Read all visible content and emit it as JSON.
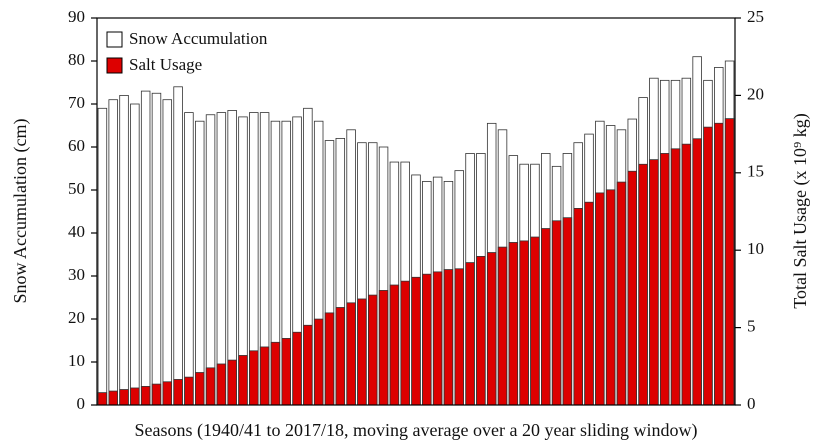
{
  "chart_data": {
    "type": "bar",
    "xlabel": "Seasons (1940/41 to 2017/18, moving average over a 20 year sliding window)",
    "ylabel": "Snow Accumulation (cm)",
    "y2label": "Total Salt Usage  (x 10⁹ kg)",
    "legend": "upper left",
    "categories": [
      null,
      null,
      null,
      null,
      null,
      null,
      null,
      null,
      null,
      null,
      null,
      null,
      null,
      null,
      null,
      null,
      null,
      null,
      null,
      null,
      null,
      null,
      null,
      null,
      null,
      null,
      null,
      null,
      null,
      null,
      null,
      null,
      null,
      null,
      null,
      null,
      null,
      null,
      null,
      null,
      null,
      null,
      null,
      null,
      null,
      null,
      null,
      null,
      null,
      null,
      null,
      null,
      null,
      null,
      null,
      null,
      null,
      null,
      null
    ],
    "ylim": [
      0,
      90
    ],
    "yticks": [
      0,
      10,
      20,
      30,
      40,
      50,
      60,
      70,
      80,
      90
    ],
    "y2lim": [
      0,
      25
    ],
    "y2ticks": [
      0,
      5,
      10,
      15,
      20,
      25
    ],
    "series": [
      {
        "name": "Snow Accumulation",
        "color": "#ffffff",
        "axis": "y",
        "values": [
          69,
          71,
          72,
          70,
          73,
          72.5,
          71,
          74,
          68,
          66,
          67.5,
          68,
          68.5,
          67,
          68,
          68,
          66,
          66,
          67,
          69,
          66,
          61.5,
          62,
          64,
          61,
          61,
          60,
          56.5,
          56.5,
          53.5,
          52,
          53,
          52,
          54.5,
          58.5,
          58.5,
          65.5,
          64,
          58,
          56,
          56,
          58.5,
          55.5,
          58.5,
          61,
          63,
          66,
          65,
          64,
          66.5,
          71.5,
          76,
          75.5,
          75.5,
          76,
          81,
          75.5,
          78.5,
          80
        ]
      },
      {
        "name": "Salt Usage",
        "color": "#dd0000",
        "axis": "y2",
        "values": [
          0.8,
          0.9,
          1.0,
          1.1,
          1.2,
          1.35,
          1.5,
          1.65,
          1.8,
          2.1,
          2.4,
          2.65,
          2.9,
          3.2,
          3.5,
          3.75,
          4.05,
          4.3,
          4.7,
          5.15,
          5.55,
          5.95,
          6.3,
          6.6,
          6.85,
          7.1,
          7.4,
          7.75,
          8.0,
          8.25,
          8.45,
          8.6,
          8.75,
          8.8,
          9.2,
          9.6,
          9.85,
          10.2,
          10.5,
          10.6,
          10.85,
          11.4,
          11.9,
          12.1,
          12.7,
          13.1,
          13.7,
          13.9,
          14.4,
          15.1,
          15.55,
          15.85,
          16.25,
          16.55,
          16.85,
          17.2,
          17.95,
          18.2,
          18.5
        ]
      }
    ]
  }
}
